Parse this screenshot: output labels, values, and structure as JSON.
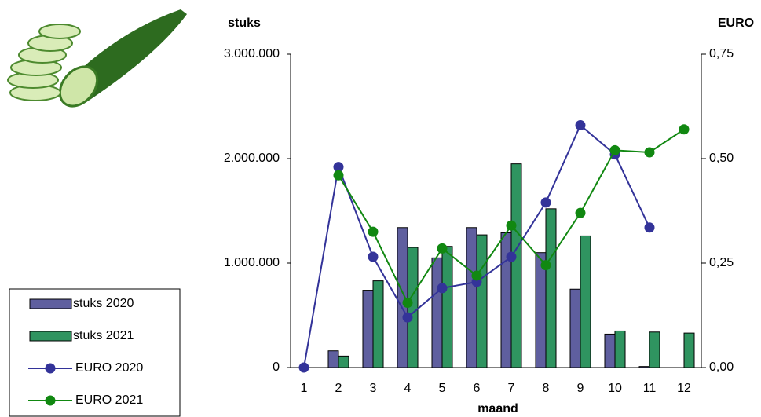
{
  "chart_data": {
    "type": "bar",
    "y_label": "stuks",
    "y2_label": "EURO",
    "x_label": "maand",
    "categories": [
      "1",
      "2",
      "3",
      "4",
      "5",
      "6",
      "7",
      "8",
      "9",
      "10",
      "11",
      "12"
    ],
    "ylim": [
      0,
      3000000
    ],
    "yticks": [
      0,
      {
        "value": 1000000,
        "label": "1.000.000"
      },
      {
        "value": 2000000,
        "label": "2.000.000"
      },
      {
        "value": 3000000,
        "label": "3.000.000"
      }
    ],
    "y2lim": [
      0,
      0.75
    ],
    "y2ticks": [
      {
        "value": 0,
        "label": "0,00"
      },
      {
        "value": 0.25,
        "label": "0,25"
      },
      {
        "value": 0.5,
        "label": "0,50"
      },
      {
        "value": 0.75,
        "label": "0,75"
      }
    ],
    "series": [
      {
        "name": "stuks 2020",
        "type": "bar",
        "color": "#5f5f9f",
        "values": [
          0,
          160000,
          740000,
          1340000,
          1050000,
          1340000,
          1290000,
          1100000,
          750000,
          320000,
          10000,
          null
        ]
      },
      {
        "name": "stuks 2021",
        "type": "bar",
        "color": "#2f9460",
        "values": [
          null,
          110000,
          830000,
          1150000,
          1160000,
          1270000,
          1950000,
          1520000,
          1260000,
          350000,
          340000,
          330000
        ]
      },
      {
        "name": "EURO 2020",
        "type": "line",
        "axis": "y2",
        "color": "#333399",
        "values": [
          0,
          0.48,
          0.265,
          0.12,
          0.19,
          0.205,
          0.265,
          0.395,
          0.58,
          0.51,
          0.335,
          null
        ]
      },
      {
        "name": "EURO 2021",
        "type": "line",
        "axis": "y2",
        "color": "#118811",
        "values": [
          null,
          0.46,
          0.325,
          0.155,
          0.285,
          0.22,
          0.34,
          0.245,
          0.37,
          0.52,
          0.515,
          0.57
        ]
      }
    ]
  }
}
